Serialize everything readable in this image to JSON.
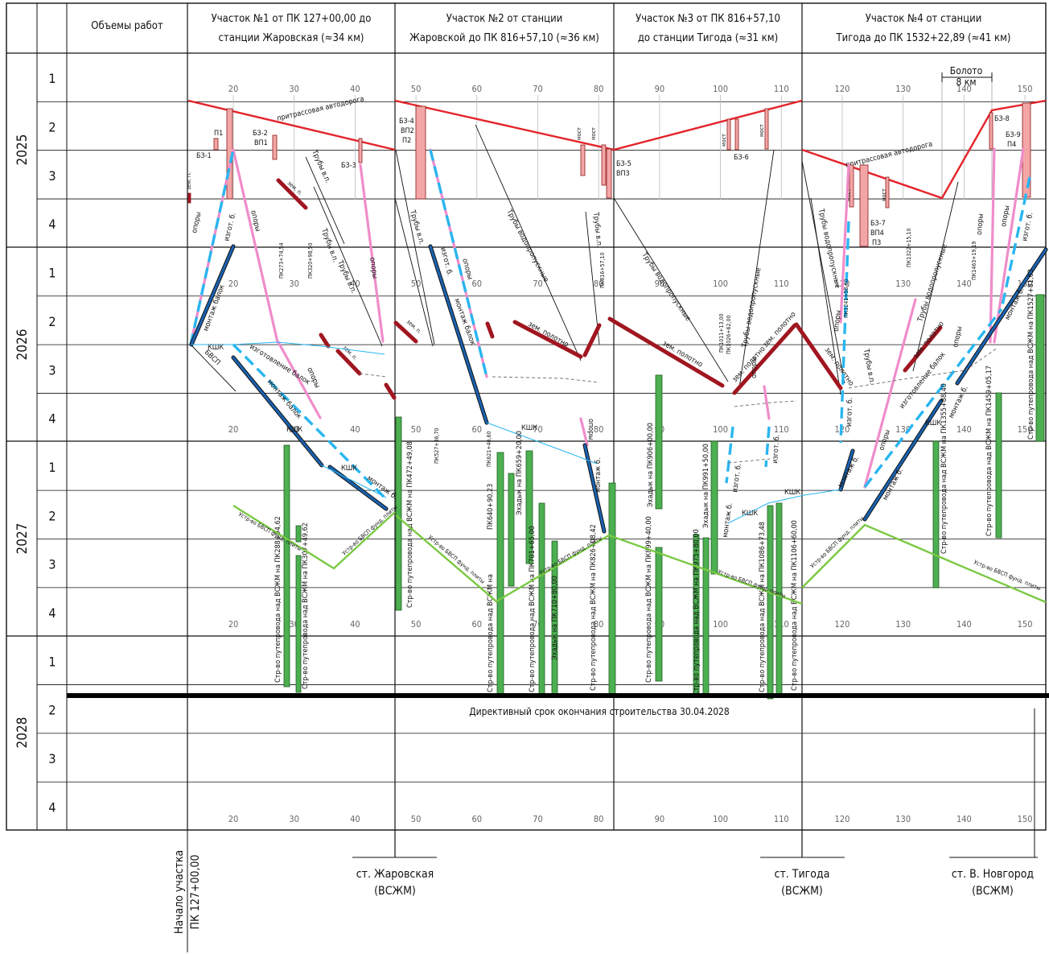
{
  "header": {
    "works": "Объемы работ",
    "sections": [
      {
        "line1": "Участок №1 от ПК 127+00,00 до",
        "line2": "станции Жаровская (≈34 км)"
      },
      {
        "line1": "Участок №2 от станции",
        "line2": "Жаровской до ПК 816+57,10 (≈36 км)"
      },
      {
        "line1": "Участок №3 от ПК 816+57,10",
        "line2": "до станции Тигода (≈31 км)"
      },
      {
        "line1": "Участок №4 от станции",
        "line2": "Тигода до ПК 1532+22,89 (≈41 км)"
      }
    ]
  },
  "years": [
    "2025",
    "2026",
    "2027",
    "2028"
  ],
  "quarters": [
    "1",
    "2",
    "3",
    "4"
  ],
  "km_ticks": [
    "20",
    "30",
    "40",
    "50",
    "60",
    "70",
    "80",
    "90",
    "100",
    "110",
    "120",
    "130",
    "140",
    "150"
  ],
  "swamp": {
    "title": "Болото",
    "length": "8 км"
  },
  "deadline": "Директивный срок окончания строительства 30.04.2028",
  "start": {
    "line1": "Начало участка",
    "line2": "ПК 127+00,00"
  },
  "stations": [
    {
      "name": "ст. Жаровская",
      "sub": "(ВСЖМ)"
    },
    {
      "name": "ст. Тигода",
      "sub": "(ВСЖМ)"
    },
    {
      "name": "ст. В. Новгород",
      "sub": "(ВСЖМ)"
    }
  ],
  "colors": {
    "road": "#e4242b",
    "piers": "#f08ccb",
    "beams_make": "#29b6f0",
    "beams_mount": "#1a62b0",
    "embankment": "#a01620",
    "bridge": "#f4a6a6",
    "overpass": "#4caf50",
    "slab": "#7ac943",
    "deadline": "#000000"
  },
  "labels": {
    "road": "притрассовая автодорога",
    "piers": "опоры",
    "beam_make": "изготовление балок",
    "beam_make_short": "изгот. б.",
    "beam_mount": "монтаж балок",
    "beam_mount_short": "монтаж б.",
    "kshk": "КШК",
    "bvsp": "БВСП",
    "slab": "Устр-во БВСП фунд. плиты",
    "pipes": "Трубы водопропускные",
    "pipes_short": "Трубы в.п.",
    "emb": "зем. полотно",
    "emb_short": "зем. п.",
    "bridge": "мост",
    "bz": [
      "БЗ-1",
      "П1",
      "БЗ-2",
      "ВП1",
      "БЗ-3",
      "БЗ-4",
      "ВП2",
      "П2",
      "БЗ-5",
      "ВП3",
      "БЗ-6",
      "БЗ-7",
      "ВП4",
      "П3",
      "БЗ-8",
      "БЗ-9",
      "П4"
    ],
    "pk": [
      "ПК273+74,54",
      "ПК320+98,50",
      "ПК527+36,70",
      "ПК621+46,60",
      "ПК816+57,10",
      "ПК1011+13,00",
      "ПК1026+62,00",
      "ПК1241+58,60",
      "ПК1322+15,10",
      "ПК1463+19,19"
    ],
    "overpasses": [
      "Стр-во путепровода над ВСЖМ на ПК288+94,62",
      "Стр-во путепровода над ВСЖМ на ПК307+49,62",
      "Стр-во путепровода над ВСЖМ на ПК472+49,08",
      "ПК640+90,23",
      "Стр-во путепровода над ВСЖМ на",
      "Эхадык на ПК659+20,00",
      "Стр-во путепровода над ВСЖМ на ПК701+65,00",
      "Эхадык на ПК710+80,00",
      "Стр-во путепровода над ВСЖМ на ПК826+08,42",
      "Эхадык на ПК906+00,00",
      "Стр-во путепровода над ВСЖМ на ПК899+40,00",
      "Эхадык на ПК991+50,00",
      "Стр-во путепровода над ВСЖМ на ПК975+80,00",
      "Стр-во путепровода над ВСЖМ на ПК1086+73,48",
      "Стр-во путепровода над ВСЖМ на ПК1106+60,00",
      "Стр-во путепровода над ВСЖМ на ПК1355+88,40",
      "Стр-во путепровода над ВСЖМ на ПК1459+05,17",
      "Стр-во путепровода над ВСЖМ на ПК1527+81,63"
    ]
  }
}
